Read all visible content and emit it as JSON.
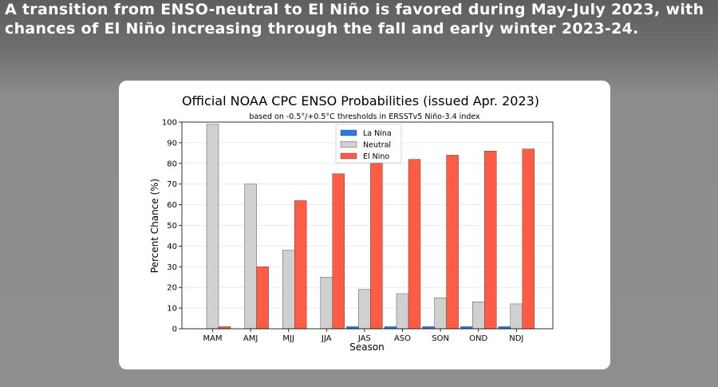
{
  "headline": "A transition from ENSO-neutral to El Niño is favored during May-July 2023, with chances of El Niño increasing through the fall and early winter 2023-24.",
  "chart_data": {
    "type": "bar",
    "title": "Official NOAA CPC ENSO Probabilities (issued Apr. 2023)",
    "subtitle": "based on -0.5°/+0.5°C thresholds in ERSSTv5 Niño-3.4 index",
    "xlabel": "Season",
    "ylabel": "Percent Chance (%)",
    "ylim": [
      0,
      100
    ],
    "yticks": [
      0,
      10,
      20,
      30,
      40,
      50,
      60,
      70,
      80,
      90,
      100
    ],
    "grid": true,
    "legend_position": "top-center",
    "categories": [
      "MAM",
      "AMJ",
      "MJJ",
      "JJA",
      "JAS",
      "ASO",
      "SON",
      "OND",
      "NDJ"
    ],
    "series": [
      {
        "name": "La Nina",
        "color": "#2a7ae2",
        "values": [
          0,
          0,
          0,
          0,
          1,
          1,
          1,
          1,
          1
        ]
      },
      {
        "name": "Neutral",
        "color": "#d0d0d0",
        "values": [
          99,
          70,
          38,
          25,
          19,
          17,
          15,
          13,
          12
        ]
      },
      {
        "name": "El Nino",
        "color": "#ff5c45",
        "values": [
          1,
          30,
          62,
          75,
          80,
          82,
          84,
          86,
          87
        ]
      }
    ]
  }
}
